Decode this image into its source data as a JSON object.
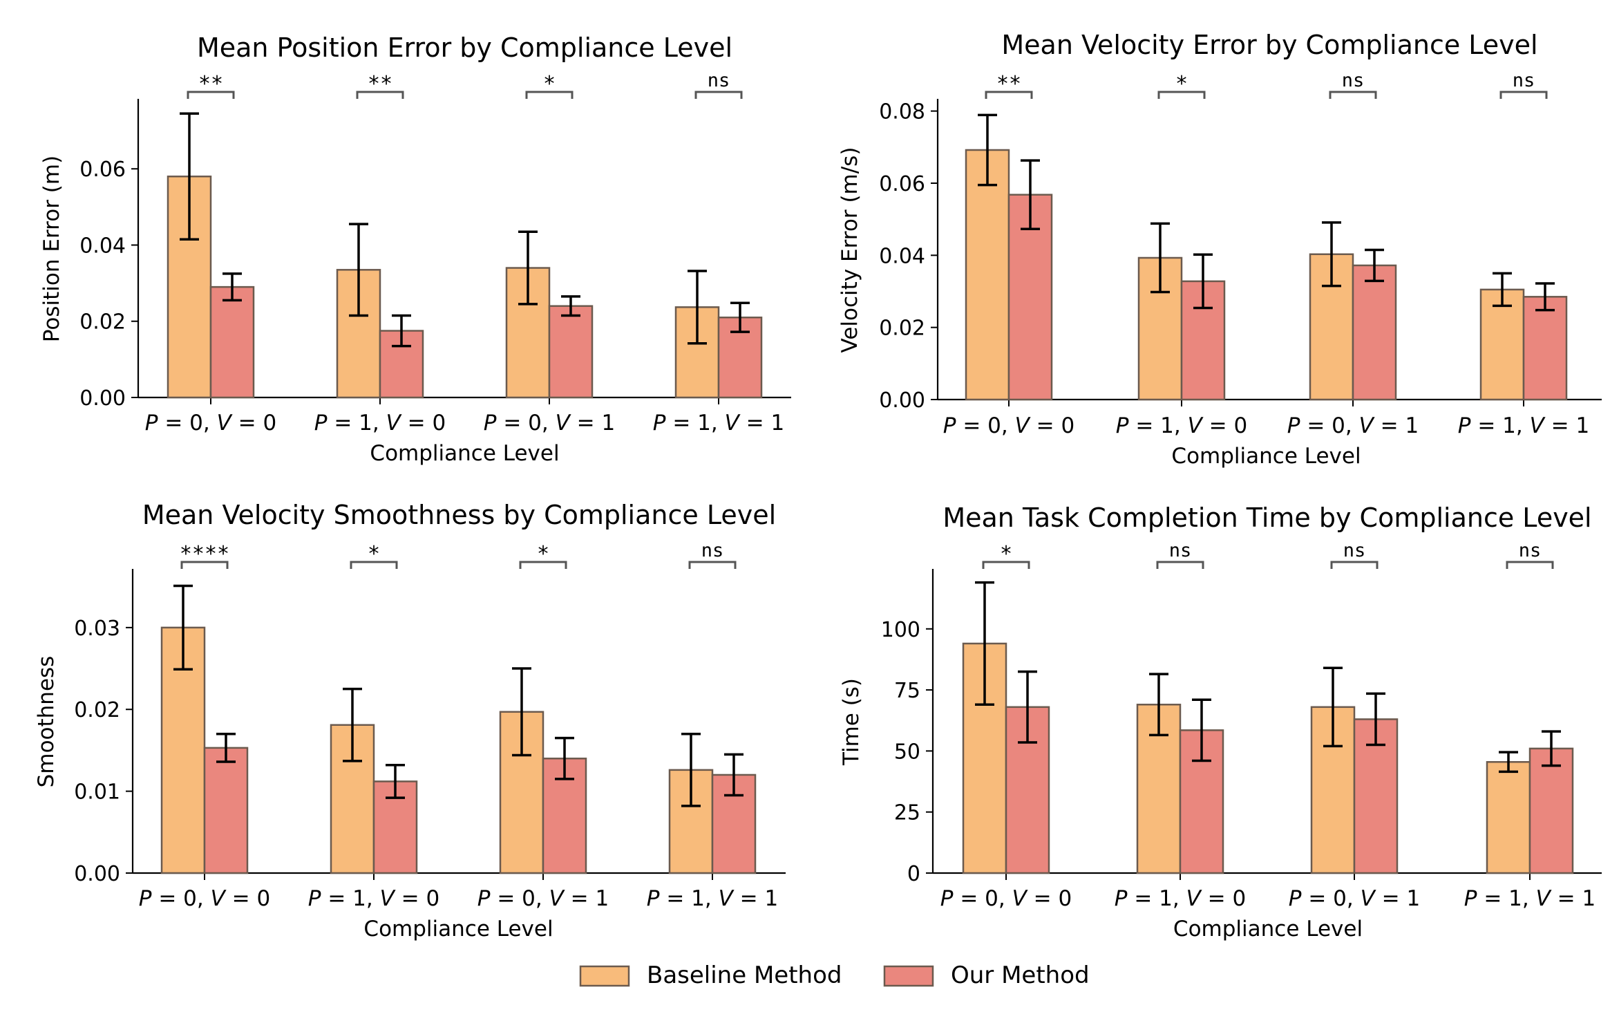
{
  "colors": {
    "baseline": "#f8bb7b",
    "ours": "#ea877e",
    "bar_edge": "#6b5a4e"
  },
  "legend": {
    "placement": "bottom-center",
    "items": [
      {
        "label": "Baseline Method",
        "color": "#f8bb7b"
      },
      {
        "label": "Our Method",
        "color": "#ea877e"
      }
    ]
  },
  "chart_data": [
    {
      "type": "bar",
      "title": "Mean Position Error by Compliance Level",
      "xlabel": "Compliance Level",
      "ylabel": "Position Error (m)",
      "categories": [
        "P = 0, V = 0",
        "P = 1, V = 0",
        "P = 0, V = 1",
        "P = 1, V = 1"
      ],
      "ylim": [
        0,
        0.078
      ],
      "yticks": [
        0.0,
        0.02,
        0.04,
        0.06
      ],
      "ytick_labels": [
        "0.00",
        "0.02",
        "0.04",
        "0.06"
      ],
      "series": [
        {
          "name": "Baseline Method",
          "values": [
            0.058,
            0.0335,
            0.034,
            0.0237
          ],
          "errors": [
            0.0165,
            0.012,
            0.0095,
            0.0095
          ]
        },
        {
          "name": "Our Method",
          "values": [
            0.029,
            0.0175,
            0.024,
            0.021
          ],
          "errors": [
            0.0035,
            0.004,
            0.0025,
            0.0038
          ]
        }
      ],
      "significance": [
        "**",
        "**",
        "*",
        "ns"
      ],
      "grid": false
    },
    {
      "type": "bar",
      "title": "Mean Velocity Error by Compliance Level",
      "xlabel": "Compliance Level",
      "ylabel": "Velocity Error (m/s)",
      "categories": [
        "P = 0, V = 0",
        "P = 1, V = 0",
        "P = 0, V = 1",
        "P = 1, V = 1"
      ],
      "ylim": [
        0,
        0.083
      ],
      "yticks": [
        0.0,
        0.02,
        0.04,
        0.06,
        0.08
      ],
      "ytick_labels": [
        "0.00",
        "0.02",
        "0.04",
        "0.06",
        "0.08"
      ],
      "series": [
        {
          "name": "Baseline Method",
          "values": [
            0.0692,
            0.0393,
            0.0403,
            0.0305
          ],
          "errors": [
            0.0097,
            0.0095,
            0.0088,
            0.0045
          ]
        },
        {
          "name": "Our Method",
          "values": [
            0.0568,
            0.0328,
            0.0372,
            0.0285
          ],
          "errors": [
            0.0095,
            0.0074,
            0.0043,
            0.0037
          ]
        }
      ],
      "significance": [
        "**",
        "*",
        "ns",
        "ns"
      ],
      "grid": false
    },
    {
      "type": "bar",
      "title": "Mean Velocity Smoothness by Compliance Level",
      "xlabel": "Compliance Level",
      "ylabel": "Smoothness",
      "categories": [
        "P = 0, V = 0",
        "P = 1, V = 0",
        "P = 0, V = 1",
        "P = 1, V = 1"
      ],
      "ylim": [
        0,
        0.037
      ],
      "yticks": [
        0.0,
        0.01,
        0.02,
        0.03
      ],
      "ytick_labels": [
        "0.00",
        "0.01",
        "0.02",
        "0.03"
      ],
      "series": [
        {
          "name": "Baseline Method",
          "values": [
            0.03,
            0.0181,
            0.0197,
            0.0126
          ],
          "errors": [
            0.0051,
            0.0044,
            0.0053,
            0.0044
          ]
        },
        {
          "name": "Our Method",
          "values": [
            0.0153,
            0.0112,
            0.014,
            0.012
          ],
          "errors": [
            0.0017,
            0.002,
            0.0025,
            0.0025
          ]
        }
      ],
      "significance": [
        "****",
        "*",
        "*",
        "ns"
      ],
      "grid": false
    },
    {
      "type": "bar",
      "title": "Mean Task Completion Time by Compliance Level",
      "xlabel": "Compliance Level",
      "ylabel": "Time (s)",
      "categories": [
        "P = 0, V = 0",
        "P = 1, V = 0",
        "P = 0, V = 1",
        "P = 1, V = 1"
      ],
      "ylim": [
        0,
        124
      ],
      "yticks": [
        0,
        25,
        50,
        75,
        100
      ],
      "ytick_labels": [
        "0",
        "25",
        "50",
        "75",
        "100"
      ],
      "series": [
        {
          "name": "Baseline Method",
          "values": [
            94,
            69,
            68,
            45.5
          ],
          "errors": [
            25,
            12.5,
            16,
            4
          ]
        },
        {
          "name": "Our Method",
          "values": [
            68,
            58.5,
            63,
            51
          ],
          "errors": [
            14.5,
            12.5,
            10.5,
            7
          ]
        }
      ],
      "significance": [
        "*",
        "ns",
        "ns",
        "ns"
      ],
      "grid": false
    }
  ]
}
